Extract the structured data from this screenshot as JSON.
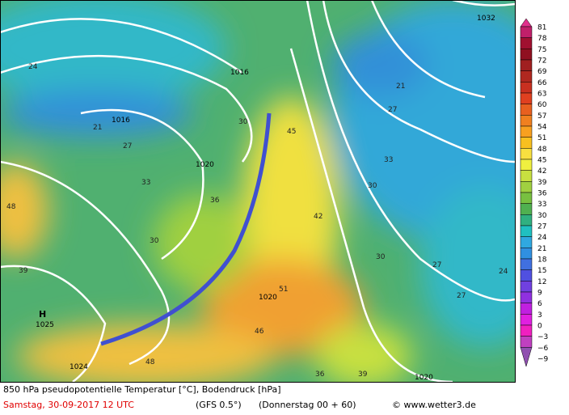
{
  "map": {
    "labels": [
      "1016",
      "1016",
      "1020",
      "1020",
      "1024",
      "1025",
      "1032",
      "1020",
      "H",
      "30",
      "27",
      "24",
      "21",
      "33",
      "36",
      "39",
      "42",
      "45",
      "48",
      "51",
      "27",
      "30",
      "33",
      "27",
      "24",
      "21",
      "30",
      "30",
      "27",
      "46",
      "48",
      "36",
      "39"
    ],
    "colorbar": {
      "ticks": [
        81,
        78,
        75,
        72,
        69,
        66,
        63,
        60,
        57,
        54,
        51,
        48,
        45,
        42,
        39,
        36,
        33,
        30,
        27,
        24,
        21,
        18,
        15,
        12,
        9,
        6,
        3,
        0,
        {
          "value": -3,
          "label": "−3"
        },
        {
          "value": -6,
          "label": "−6"
        },
        {
          "value": -9,
          "label": "−9"
        }
      ],
      "colors": [
        "#e0308c",
        "#c0206a",
        "#a01030",
        "#901020",
        "#a02020",
        "#b02820",
        "#c83020",
        "#e04020",
        "#e86020",
        "#f08020",
        "#f8a020",
        "#f8c020",
        "#f8e040",
        "#f0f040",
        "#c8e040",
        "#a0d040",
        "#78c040",
        "#50b050",
        "#30b080",
        "#20c0c0",
        "#30a8e0",
        "#3090e0",
        "#4070e0",
        "#5050e0",
        "#7040e0",
        "#9030e0",
        "#c020e0",
        "#e020e0",
        "#f020c0",
        "#c040c0",
        "#9050b0"
      ]
    }
  },
  "footer": {
    "line1": "850 hPa pseudopotentielle Temperatur [°C], Bodendruck [hPa]",
    "date": "Samstag, 30-09-2017  12 UTC",
    "model": "(GFS 0.5°)",
    "run": "(Donnerstag 00 + 60)",
    "credit": "© www.wetter3.de"
  }
}
